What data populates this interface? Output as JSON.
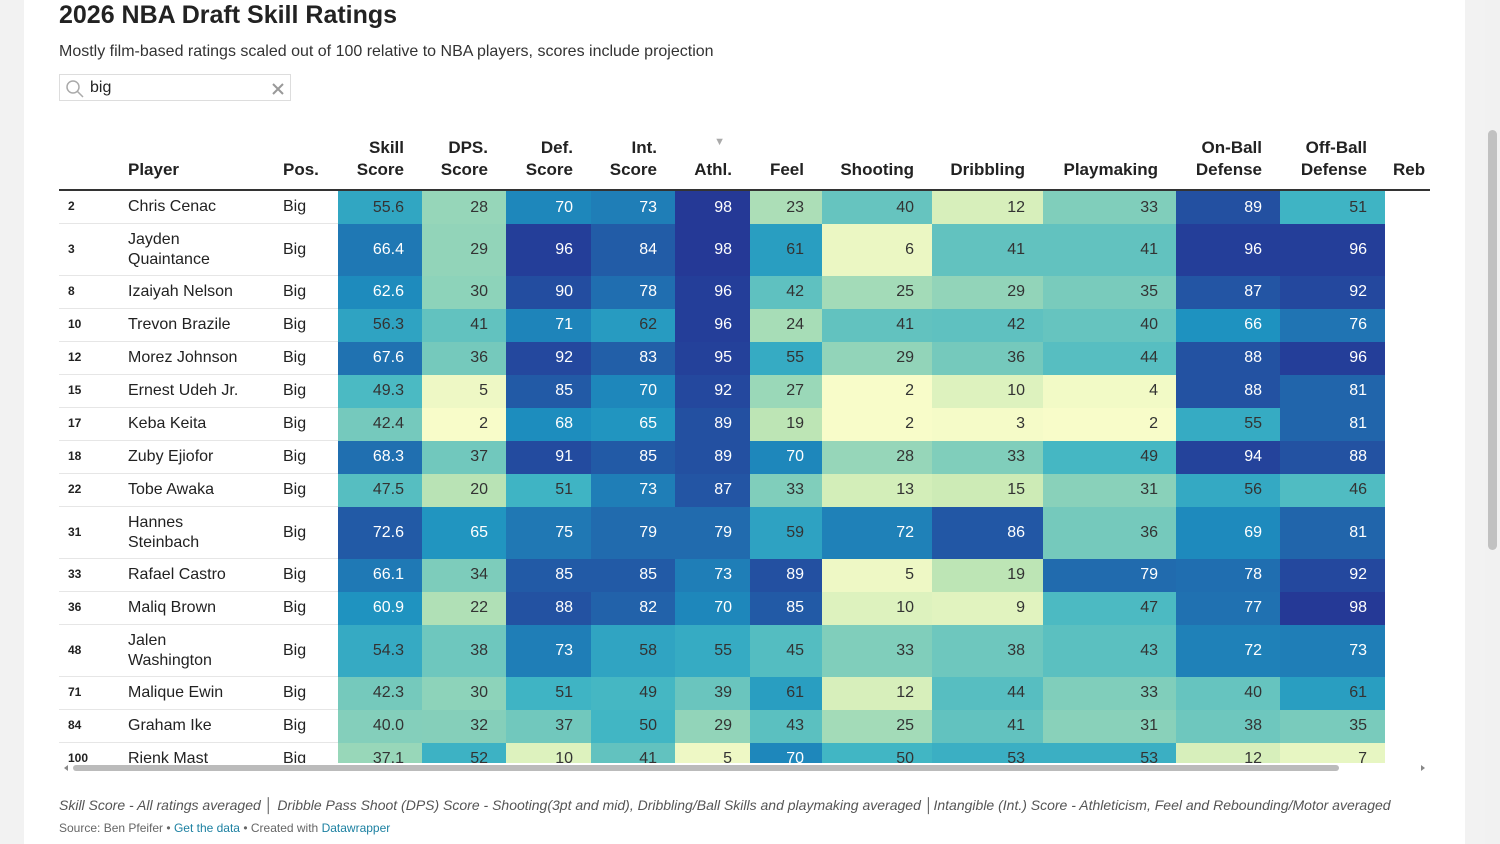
{
  "header": {
    "title": "2026 NBA Draft Skill Ratings",
    "subtitle": "Mostly film-based ratings scaled out of 100 relative to NBA players, scores include projection"
  },
  "search": {
    "query": "big"
  },
  "table": {
    "columns": [
      "Player",
      "Pos.",
      "Skill Score",
      "DPS. Score",
      "Def. Score",
      "Int. Score",
      "Athl.",
      "Feel",
      "Shooting",
      "Dribbling",
      "Playmaking",
      "On-Ball Defense",
      "Off-Ball Defense",
      "Reb"
    ],
    "rows": [
      [
        "2",
        "Chris Cenac",
        "Big",
        "55.6",
        "28",
        "70",
        "73",
        "98",
        "23",
        "40",
        "12",
        "33",
        "89",
        "51"
      ],
      [
        "3",
        "Jayden Quaintance",
        "Big",
        "66.4",
        "29",
        "96",
        "84",
        "98",
        "61",
        "6",
        "41",
        "41",
        "96",
        "96"
      ],
      [
        "8",
        "Izaiyah Nelson",
        "Big",
        "62.6",
        "30",
        "90",
        "78",
        "96",
        "42",
        "25",
        "29",
        "35",
        "87",
        "92"
      ],
      [
        "10",
        "Trevon Brazile",
        "Big",
        "56.3",
        "41",
        "71",
        "62",
        "96",
        "24",
        "41",
        "42",
        "40",
        "66",
        "76"
      ],
      [
        "12",
        "Morez Johnson",
        "Big",
        "67.6",
        "36",
        "92",
        "83",
        "95",
        "55",
        "29",
        "36",
        "44",
        "88",
        "96"
      ],
      [
        "15",
        "Ernest Udeh Jr.",
        "Big",
        "49.3",
        "5",
        "85",
        "70",
        "92",
        "27",
        "2",
        "10",
        "4",
        "88",
        "81"
      ],
      [
        "17",
        "Keba Keita",
        "Big",
        "42.4",
        "2",
        "68",
        "65",
        "89",
        "19",
        "2",
        "3",
        "2",
        "55",
        "81"
      ],
      [
        "18",
        "Zuby Ejiofor",
        "Big",
        "68.3",
        "37",
        "91",
        "85",
        "89",
        "70",
        "28",
        "33",
        "49",
        "94",
        "88"
      ],
      [
        "22",
        "Tobe Awaka",
        "Big",
        "47.5",
        "20",
        "51",
        "73",
        "87",
        "33",
        "13",
        "15",
        "31",
        "56",
        "46"
      ],
      [
        "31",
        "Hannes Steinbach",
        "Big",
        "72.6",
        "65",
        "75",
        "79",
        "79",
        "59",
        "72",
        "86",
        "36",
        "69",
        "81"
      ],
      [
        "33",
        "Rafael Castro",
        "Big",
        "66.1",
        "34",
        "85",
        "85",
        "73",
        "89",
        "5",
        "19",
        "79",
        "78",
        "92"
      ],
      [
        "36",
        "Maliq Brown",
        "Big",
        "60.9",
        "22",
        "88",
        "82",
        "70",
        "85",
        "10",
        "9",
        "47",
        "77",
        "98"
      ],
      [
        "48",
        "Jalen Washington",
        "Big",
        "54.3",
        "38",
        "73",
        "58",
        "55",
        "45",
        "33",
        "38",
        "43",
        "72",
        "73"
      ],
      [
        "71",
        "Malique Ewin",
        "Big",
        "42.3",
        "30",
        "51",
        "49",
        "39",
        "61",
        "12",
        "44",
        "33",
        "40",
        "61"
      ],
      [
        "84",
        "Graham Ike",
        "Big",
        "40.0",
        "32",
        "37",
        "50",
        "29",
        "43",
        "25",
        "41",
        "31",
        "38",
        "35"
      ],
      [
        "100",
        "Rienk Mast",
        "Big",
        "37.1",
        "52",
        "10",
        "41",
        "5",
        "70",
        "50",
        "53",
        "53",
        "12",
        "7"
      ]
    ],
    "color_scale": {
      "colors": [
        "#ffffcc",
        "#c7e9b4",
        "#7fcdbb",
        "#41b6c4",
        "#1d91c0",
        "#225ea8",
        "#253494"
      ],
      "domain": [
        0,
        100
      ],
      "skill_domain": [
        20,
        82
      ]
    }
  },
  "footer": {
    "note": "Skill Score - All ratings averaged │ Dribble Pass Shoot (DPS) Score - Shooting(3pt and mid), Dribbling/Ball Skills and playmaking averaged │Intangible (Int.) Score - Athleticism, Feel and Rebounding/Motor averaged",
    "source_prefix": "Source: Ben Pfeifer • ",
    "data_link": "Get the data",
    "created_prefix": " • Created with ",
    "tool_link": "Datawrapper"
  }
}
